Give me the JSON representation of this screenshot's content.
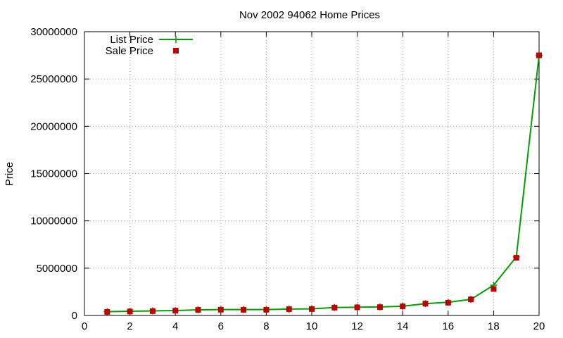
{
  "chart_data": {
    "type": "line",
    "title": "Nov 2002 94062 Home Prices",
    "xlabel": "",
    "ylabel": "Price",
    "xlim": [
      0,
      20
    ],
    "ylim": [
      0,
      30000000
    ],
    "xticks": [
      "0",
      "2",
      "4",
      "6",
      "8",
      "10",
      "12",
      "14",
      "16",
      "18",
      "20"
    ],
    "yticks": [
      "0",
      "5000000",
      "10000000",
      "15000000",
      "20000000",
      "25000000",
      "30000000"
    ],
    "grid": true,
    "legend_position": "top-left",
    "series": [
      {
        "name": "List Price",
        "style": "line-with-points",
        "color": "#00a000",
        "x": [
          1,
          2,
          3,
          4,
          5,
          6,
          7,
          8,
          9,
          10,
          11,
          12,
          13,
          14,
          15,
          16,
          17,
          18,
          19,
          20
        ],
        "values": [
          400000,
          450000,
          480000,
          520000,
          600000,
          620000,
          620000,
          620000,
          680000,
          700000,
          850000,
          870000,
          900000,
          980000,
          1250000,
          1400000,
          1700000,
          3200000,
          6200000,
          27500000
        ]
      },
      {
        "name": "Sale Price",
        "style": "points",
        "color": "#c00000",
        "x": [
          1,
          2,
          3,
          4,
          5,
          6,
          7,
          8,
          9,
          10,
          11,
          12,
          13,
          14,
          15,
          16,
          17,
          18,
          19,
          20
        ],
        "values": [
          380000,
          420000,
          460000,
          510000,
          590000,
          610000,
          600000,
          600000,
          660000,
          680000,
          830000,
          860000,
          880000,
          960000,
          1250000,
          1350000,
          1700000,
          2800000,
          6100000,
          27500000
        ]
      }
    ]
  }
}
